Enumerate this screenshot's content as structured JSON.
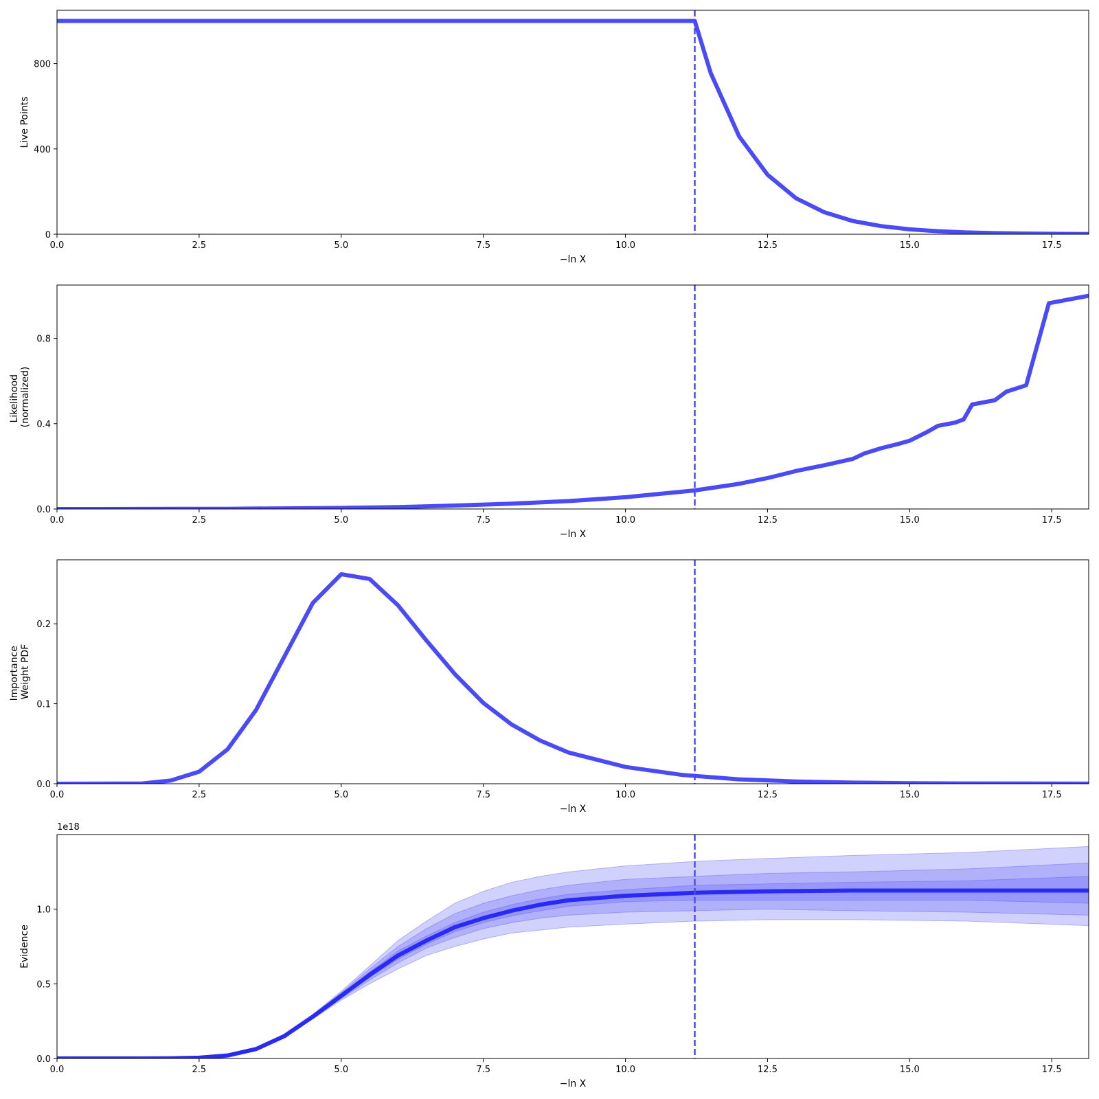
{
  "chart_data": [
    {
      "type": "line",
      "xlabel": "−ln X",
      "ylabel": [
        "Live Points"
      ],
      "xlim": [
        0,
        18.15
      ],
      "ylim": [
        0,
        1050
      ],
      "xticks": [
        0,
        2.5,
        5,
        7.5,
        10,
        12.5,
        15,
        17.5
      ],
      "xtick_labels": [
        "0.0",
        "2.5",
        "5.0",
        "7.5",
        "10.0",
        "12.5",
        "15.0",
        "17.5"
      ],
      "yticks": [
        0,
        400,
        800
      ],
      "ytick_labels": [
        "0",
        "400",
        "800"
      ],
      "vline_x": 11.22,
      "color": "#4b4bf5",
      "series": [
        {
          "x": [
            0,
            11.22,
            11.5,
            12.0,
            12.5,
            13.0,
            13.5,
            14.0,
            14.5,
            15.0,
            15.5,
            16.0,
            16.5,
            17.0,
            17.5,
            18.15
          ],
          "y": [
            1000,
            1000,
            756,
            459,
            279,
            169,
            103,
            62,
            38,
            23,
            14,
            8.5,
            5.2,
            3.2,
            1.9,
            1.0
          ]
        }
      ]
    },
    {
      "type": "line",
      "xlabel": "−ln X",
      "ylabel": [
        "Likelihood",
        "(normalized)"
      ],
      "xlim": [
        0,
        18.15
      ],
      "ylim": [
        0,
        1.05
      ],
      "xticks": [
        0,
        2.5,
        5,
        7.5,
        10,
        12.5,
        15,
        17.5
      ],
      "xtick_labels": [
        "0.0",
        "2.5",
        "5.0",
        "7.5",
        "10.0",
        "12.5",
        "15.0",
        "17.5"
      ],
      "yticks": [
        0,
        0.4,
        0.8
      ],
      "ytick_labels": [
        "0.0",
        "0.4",
        "0.8"
      ],
      "vline_x": 11.22,
      "color": "#4b4bf5",
      "series": [
        {
          "x": [
            0,
            3.0,
            5.0,
            6.0,
            7.0,
            8.0,
            9.0,
            10.0,
            11.22,
            12.0,
            12.5,
            13.0,
            13.5,
            14.0,
            14.2,
            14.5,
            14.8,
            15.0,
            15.3,
            15.5,
            15.8,
            15.95,
            16.1,
            16.5,
            16.7,
            17.05,
            17.45,
            18.15
          ],
          "y": [
            0,
            0.001,
            0.005,
            0.009,
            0.016,
            0.025,
            0.037,
            0.055,
            0.087,
            0.118,
            0.145,
            0.178,
            0.205,
            0.235,
            0.26,
            0.285,
            0.305,
            0.32,
            0.36,
            0.39,
            0.405,
            0.42,
            0.49,
            0.51,
            0.55,
            0.58,
            0.965,
            1.0
          ]
        }
      ]
    },
    {
      "type": "line",
      "xlabel": "−ln X",
      "ylabel": [
        "Importance",
        "Weight PDF"
      ],
      "xlim": [
        0,
        18.15
      ],
      "ylim": [
        0,
        0.28
      ],
      "xticks": [
        0,
        2.5,
        5,
        7.5,
        10,
        12.5,
        15,
        17.5
      ],
      "xtick_labels": [
        "0.0",
        "2.5",
        "5.0",
        "7.5",
        "10.0",
        "12.5",
        "15.0",
        "17.5"
      ],
      "yticks": [
        0,
        0.1,
        0.2
      ],
      "ytick_labels": [
        "0.0",
        "0.1",
        "0.2"
      ],
      "vline_x": 11.22,
      "color": "#4b4bf5",
      "series": [
        {
          "x": [
            0,
            1.5,
            2.0,
            2.5,
            3.0,
            3.5,
            4.0,
            4.5,
            5.0,
            5.5,
            6.0,
            6.5,
            7.0,
            7.5,
            8.0,
            8.5,
            9.0,
            10.0,
            11.0,
            12.0,
            13.0,
            14.0,
            15.0,
            16.0,
            18.15
          ],
          "y": [
            0,
            0.0003,
            0.004,
            0.015,
            0.043,
            0.092,
            0.159,
            0.226,
            0.262,
            0.256,
            0.223,
            0.179,
            0.137,
            0.101,
            0.074,
            0.054,
            0.039,
            0.021,
            0.011,
            0.0055,
            0.0028,
            0.0014,
            0.0007,
            0.0003,
            0.0001
          ]
        }
      ]
    },
    {
      "type": "area",
      "xlabel": "−ln X",
      "ylabel": [
        "Evidence"
      ],
      "offset_text": "1e18",
      "xlim": [
        0,
        18.15
      ],
      "ylim": [
        0,
        1.5
      ],
      "xticks": [
        0,
        2.5,
        5,
        7.5,
        10,
        12.5,
        15,
        17.5
      ],
      "xtick_labels": [
        "0.0",
        "2.5",
        "5.0",
        "7.5",
        "10.0",
        "12.5",
        "15.0",
        "17.5"
      ],
      "yticks": [
        0,
        0.5,
        1.0
      ],
      "ytick_labels": [
        "0.0",
        "0.5",
        "1.0"
      ],
      "vline_x": 11.22,
      "color": "#4b4bf5",
      "band_color": "#5a5af7",
      "line_color": "#2a2af5",
      "x": [
        0,
        1.5,
        2.0,
        2.5,
        3.0,
        3.5,
        4.0,
        4.5,
        5.0,
        5.5,
        6.0,
        6.5,
        7.0,
        7.5,
        8.0,
        8.5,
        9.0,
        10.0,
        11.22,
        12.5,
        14.0,
        16.0,
        18.15
      ],
      "median": [
        0,
        0.0001,
        0.001,
        0.005,
        0.02,
        0.063,
        0.15,
        0.28,
        0.42,
        0.56,
        0.69,
        0.79,
        0.88,
        0.94,
        0.99,
        1.03,
        1.06,
        1.09,
        1.11,
        1.12,
        1.125,
        1.125,
        1.125
      ],
      "bands": [
        {
          "lower": [
            0,
            0.0001,
            0.001,
            0.005,
            0.02,
            0.062,
            0.145,
            0.265,
            0.39,
            0.5,
            0.6,
            0.69,
            0.75,
            0.8,
            0.84,
            0.86,
            0.88,
            0.9,
            0.92,
            0.93,
            0.93,
            0.92,
            0.89
          ],
          "upper": [
            0,
            0.0001,
            0.001,
            0.005,
            0.02,
            0.064,
            0.155,
            0.295,
            0.45,
            0.62,
            0.79,
            0.92,
            1.04,
            1.12,
            1.18,
            1.22,
            1.25,
            1.29,
            1.32,
            1.34,
            1.36,
            1.38,
            1.42
          ]
        },
        {
          "lower": [
            0,
            0.0001,
            0.001,
            0.005,
            0.02,
            0.062,
            0.147,
            0.27,
            0.4,
            0.525,
            0.64,
            0.74,
            0.81,
            0.87,
            0.91,
            0.94,
            0.96,
            0.98,
            0.99,
            1.0,
            0.99,
            0.98,
            0.96
          ],
          "upper": [
            0,
            0.0001,
            0.001,
            0.005,
            0.02,
            0.064,
            0.153,
            0.29,
            0.44,
            0.6,
            0.75,
            0.87,
            0.97,
            1.04,
            1.09,
            1.13,
            1.16,
            1.2,
            1.22,
            1.24,
            1.25,
            1.27,
            1.31
          ]
        },
        {
          "lower": [
            0,
            0.0001,
            0.001,
            0.005,
            0.02,
            0.063,
            0.148,
            0.275,
            0.41,
            0.54,
            0.665,
            0.765,
            0.85,
            0.91,
            0.955,
            0.99,
            1.02,
            1.05,
            1.06,
            1.06,
            1.06,
            1.06,
            1.04
          ],
          "upper": [
            0,
            0.0001,
            0.001,
            0.005,
            0.02,
            0.063,
            0.152,
            0.285,
            0.43,
            0.58,
            0.72,
            0.82,
            0.91,
            0.98,
            1.03,
            1.07,
            1.1,
            1.13,
            1.16,
            1.17,
            1.18,
            1.19,
            1.22
          ]
        }
      ]
    }
  ]
}
